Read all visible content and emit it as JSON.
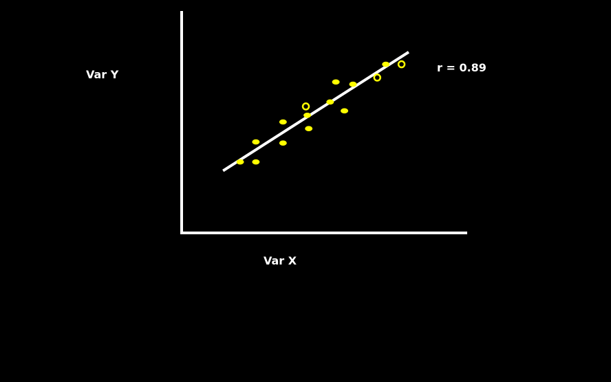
{
  "chart_data": {
    "type": "scatter",
    "title": "",
    "xlabel": "Var X",
    "ylabel": "Var Y",
    "annotation": "r = 0.89",
    "xlim": [
      0,
      100
    ],
    "ylim": [
      0,
      100
    ],
    "grid": false,
    "background_color": "#000000",
    "axis_color": "#ffffff",
    "point_color": "#ffff00",
    "trendline_color": "#ffffff",
    "trendline": {
      "x": [
        14.5,
        79.5
      ],
      "y": [
        28,
        81.5
      ]
    },
    "points": [
      {
        "x": 20.5,
        "y": 32,
        "style": "filled"
      },
      {
        "x": 26,
        "y": 32,
        "style": "filled"
      },
      {
        "x": 26,
        "y": 41,
        "style": "filled"
      },
      {
        "x": 35.5,
        "y": 40.5,
        "style": "filled"
      },
      {
        "x": 35.5,
        "y": 50,
        "style": "filled"
      },
      {
        "x": 44.5,
        "y": 47,
        "style": "filled"
      },
      {
        "x": 44,
        "y": 53,
        "style": "filled"
      },
      {
        "x": 43.5,
        "y": 57,
        "style": "hollow"
      },
      {
        "x": 52,
        "y": 59,
        "style": "filled"
      },
      {
        "x": 57,
        "y": 55,
        "style": "filled"
      },
      {
        "x": 54,
        "y": 68,
        "style": "filled"
      },
      {
        "x": 60,
        "y": 67,
        "style": "filled"
      },
      {
        "x": 68.5,
        "y": 70,
        "style": "hollow"
      },
      {
        "x": 71.5,
        "y": 76,
        "style": "filled"
      },
      {
        "x": 77,
        "y": 76,
        "style": "hollow"
      }
    ]
  }
}
